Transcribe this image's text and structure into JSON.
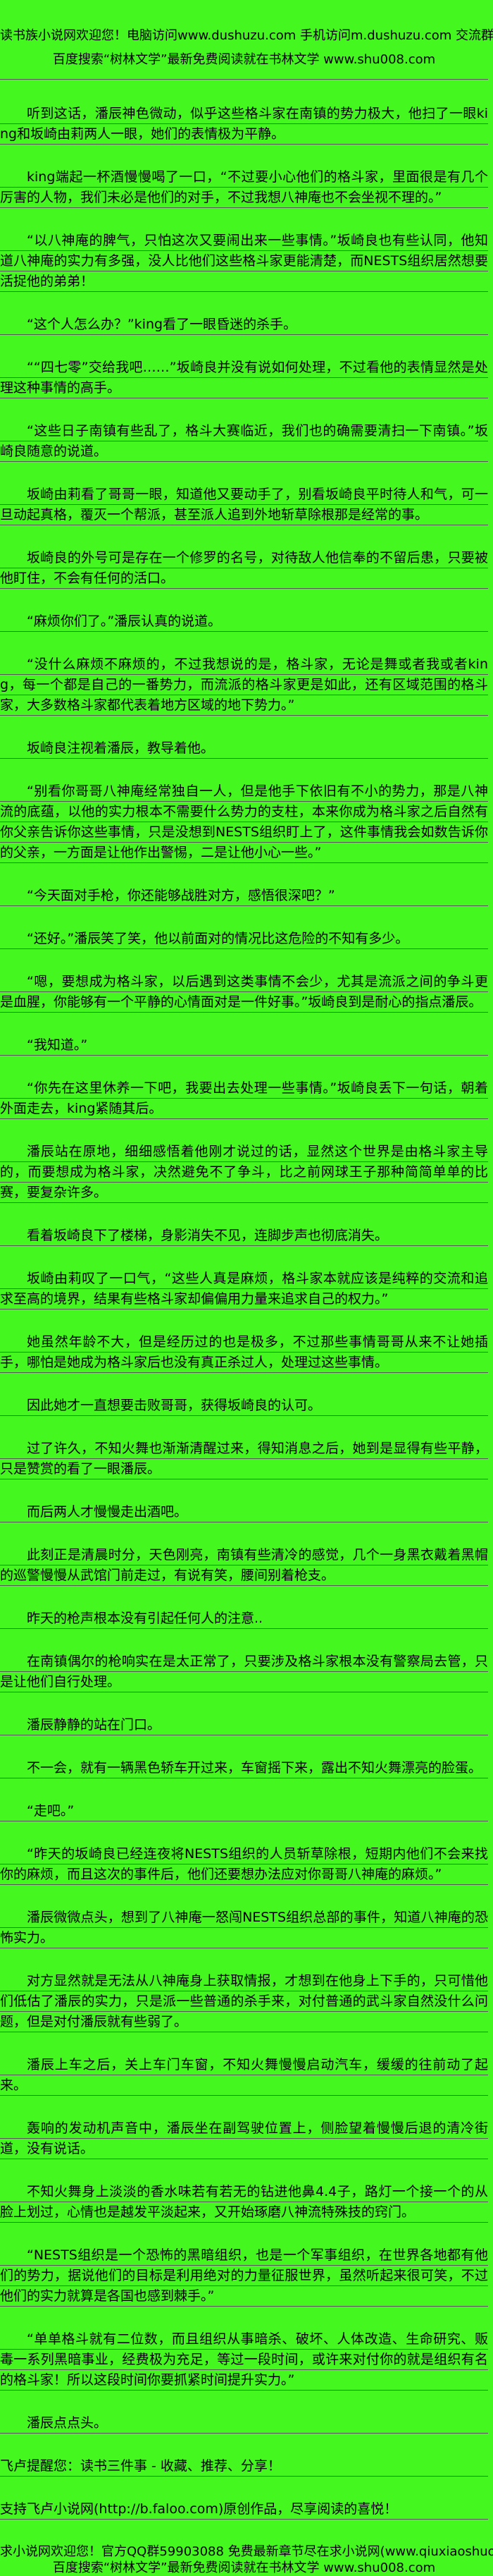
{
  "page": {
    "bg_color": "#44f71e",
    "text_color": "#000000",
    "rule_color": "#555555"
  },
  "header": {
    "line1": "读书族小说网欢迎您！电脑访问www.dushuzu.com 手机访问m.dushuzu.com 交流群513781872",
    "line2": "百度搜索“树林文学”最新免费阅读就在书林文学 www.shu008.com"
  },
  "content": {
    "paragraphs": [
      "听到这话，潘辰神色微动，似乎这些格斗家在南镇的势力极大，他扫了一眼king和坂崎由莉两人一眼，她们的表情极为平静。",
      "king端起一杯酒慢慢喝了一口，“不过要小心他们的格斗家，里面很是有几个厉害的人物，我们未必是他们的对手，不过我想八神庵也不会坐视不理的。”",
      "“以八神庵的脾气，只怕这次又要闹出来一些事情。”坂崎良也有些认同，他知道八神庵的实力有多强，没人比他们这些格斗家更能清楚，而NESTS组织居然想要活捉他的弟弟！",
      "“这个人怎么办？”king看了一眼昏迷的杀手。",
      "““四七零”交给我吧……”坂崎良并没有说如何处理，不过看他的表情显然是处理这种事情的高手。",
      "“这些日子南镇有些乱了，格斗大赛临近，我们也的确需要清扫一下南镇。”坂崎良随意的说道。",
      "坂崎由莉看了哥哥一眼，知道他又要动手了，别看坂崎良平时待人和气，可一旦动起真格，覆灭一个帮派，甚至派人追到外地斩草除根那是经常的事。",
      "坂崎良的外号可是存在一个修罗的名号，对待敌人他信奉的不留后患，只要被他盯住，不会有任何的活口。",
      "“麻烦你们了。”潘辰认真的说道。",
      "“没什么麻烦不麻烦的，不过我想说的是，格斗家，无论是舞或者我或者king，每一个都是自己的一番势力，而流派的格斗家更是如此，还有区域范围的格斗家，大多数格斗家都代表着地方区域的地下势力。”",
      "坂崎良注视着潘辰，教导着他。",
      "“别看你哥哥八神庵经常独自一人，但是他手下依旧有不小的势力，那是八神流的底蕴，以他的实力根本不需要什么势力的支柱，本来你成为格斗家之后自然有你父亲告诉你这些事情，只是没想到NESTS组织盯上了，这件事情我会如数告诉你的父亲，一方面是让他作出警惕，二是让他小心一些。”",
      "“今天面对手枪，你还能够战胜对方，感悟很深吧？”",
      "“还好。”潘辰笑了笑，他以前面对的情况比这危险的不知有多少。",
      "“嗯，要想成为格斗家，以后遇到这类事情不会少，尤其是流派之间的争斗更是血腥，你能够有一个平静的心情面对是一件好事。”坂崎良到是耐心的指点潘辰。",
      "“我知道。”",
      "“你先在这里休养一下吧，我要出去处理一些事情。”坂崎良丢下一句话，朝着外面走去，king紧随其后。",
      "潘辰站在原地，细细感悟着他刚才说过的话，显然这个世界是由格斗家主导的，而要想成为格斗家，决然避免不了争斗，比之前网球王子那种简简单单的比赛，要复杂许多。",
      "看着坂崎良下了楼梯，身影消失不见，连脚步声也彻底消失。",
      "坂崎由莉叹了一口气，“这些人真是麻烦，格斗家本就应该是纯粹的交流和追求至高的境界，结果有些格斗家却偏偏用力量来追求自己的权力。”",
      "她虽然年龄不大，但是经历过的也是极多，不过那些事情哥哥从来不让她插手，哪怕是她成为格斗家后也没有真正杀过人，处理过这些事情。",
      "因此她才一直想要击败哥哥，获得坂崎良的认可。",
      "过了许久，不知火舞也渐渐清醒过来，得知消息之后，她到是显得有些平静，只是赞赏的看了一眼潘辰。",
      "而后两人才慢慢走出酒吧。",
      "此刻正是清晨时分，天色刚亮，南镇有些清冷的感觉，几个一身黑衣戴着黑帽的巡警慢慢从武馆门前走过，有说有笑，腰间别着枪支。",
      "昨天的枪声根本没有引起任何人的注意..",
      "在南镇偶尔的枪响实在是太正常了，只要涉及格斗家根本没有警察局去管，只是让他们自行处理。",
      "潘辰静静的站在门口。",
      "不一会，就有一辆黑色轿车开过来，车窗摇下来，露出不知火舞漂亮的脸蛋。",
      "“走吧。”",
      "“昨天的坂崎良已经连夜将NESTS组织的人员斩草除根，短期内他们不会来找你的麻烦，而且这次的事件后，他们还要想办法应对你哥哥八神庵的麻烦。”",
      "潘辰微微点头，想到了八神庵一怒闯NESTS组织总部的事件，知道八神庵的恐怖实力。",
      "对方显然就是无法从八神庵身上获取情报，才想到在他身上下手的，只可惜他们低估了潘辰的实力，只是派一些普通的杀手来，对付普通的武斗家自然没什么问题，但是对付潘辰就有些弱了。",
      "潘辰上车之后，关上车门车窗，不知火舞慢慢启动汽车，缓缓的往前动了起来。",
      "轰响的发动机声音中，潘辰坐在副驾驶位置上，侧脸望着慢慢后退的清冷街道，没有说话。",
      "不知火舞身上淡淡的香水味若有若无的钻进他鼻4.4子，路灯一个接一个的从脸上划过，心情也是越发平淡起来，又开始琢磨八神流特殊技的窍门。",
      "“NESTS组织是一个恐怖的黑暗组织，也是一个军事组织，在世界各地都有他们的势力，据说他们的目标是利用绝对的力量征服世界，虽然听起来很可笑，不过他们的实力就算是各国也感到棘手。”",
      "“单单格斗就有二位数，而且组织从事暗杀、破坏、人体改造、生命研究、贩毒一系列黑暗事业，经费极为充足，等过一段时间，或许来对付你的就是组织有名的格斗家！所以这段时间你要抓紧时间提升实力。”",
      "潘辰点点头。"
    ],
    "notices": [
      "飞卢提醒您：读书三件事 - 收藏、推荐、分享！",
      "支持飞卢小说网(http://b.faloo.com)原创作品，尽享阅读的喜悦！"
    ]
  },
  "footer": {
    "line1": "求小说网欢迎您！官方QQ群59903088 免费最新章节尽在求小说网(www.qiuxiaoshuo.com)",
    "line2": "百度搜索“树林文学”最新免费阅读就在书林文学 www.shu008.com"
  }
}
